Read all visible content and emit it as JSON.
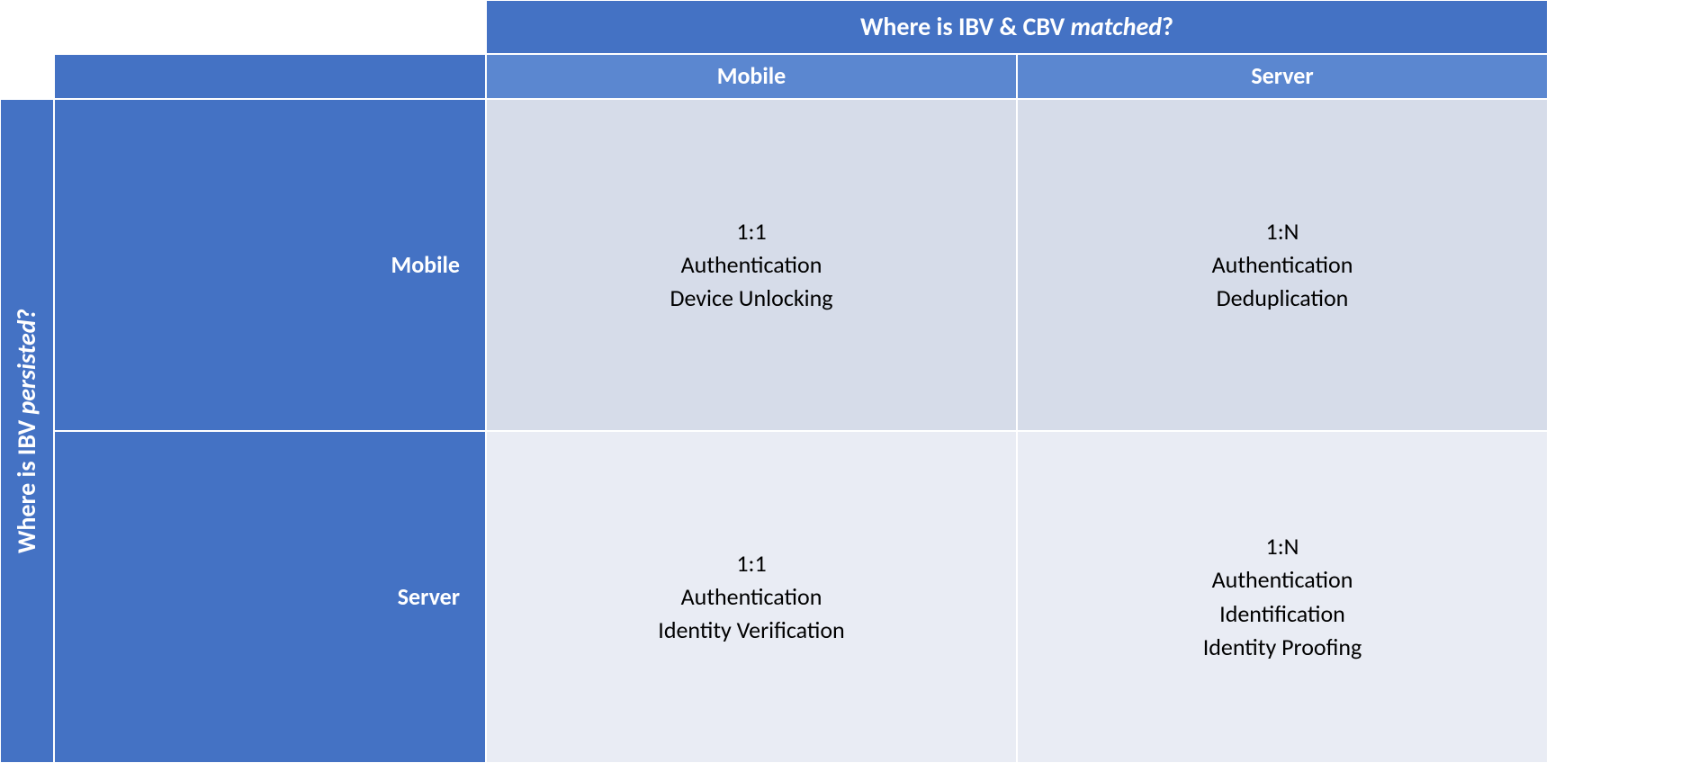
{
  "matrix": {
    "type": "table",
    "grid": {
      "cols": [
        "60px",
        "480px",
        "1fr",
        "1fr"
      ],
      "rows": [
        "60px",
        "50px",
        "1fr",
        "1fr"
      ]
    },
    "colors": {
      "header_bg": "#4472c4",
      "subheader_bg": "#5b87d0",
      "header_text": "#ffffff",
      "row1_bg": "#d6dce9",
      "row2_bg": "#e9ecf4",
      "body_text": "#000000",
      "gap_color": "#ffffff"
    },
    "fonts": {
      "header_size": "28px",
      "subheader_size": "26px",
      "rowlabel_size": "26px",
      "body_size": "26px"
    },
    "top_header": {
      "prefix": "Where is IBV & CBV ",
      "italic": "matched",
      "suffix": "?"
    },
    "left_header": {
      "prefix": "Where is  IBV ",
      "italic": "persisted",
      "suffix": "?"
    },
    "col_labels": [
      "Mobile",
      "Server"
    ],
    "row_labels": [
      "Mobile",
      "Server"
    ],
    "cells": [
      [
        {
          "lines": [
            "1:1",
            "Authentication",
            "Device Unlocking"
          ]
        },
        {
          "lines": [
            "1:N",
            "Authentication",
            "Deduplication"
          ]
        }
      ],
      [
        {
          "lines": [
            "1:1",
            "Authentication",
            "Identity Verification"
          ]
        },
        {
          "lines": [
            "1:N",
            "Authentication",
            "Identification",
            "Identity Proofing"
          ]
        }
      ]
    ]
  }
}
